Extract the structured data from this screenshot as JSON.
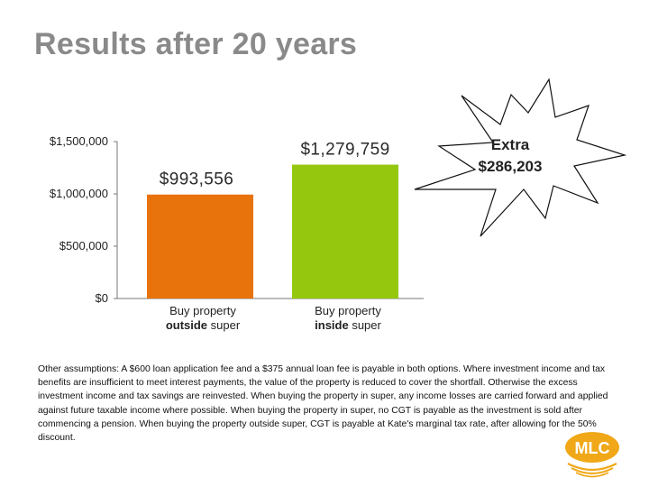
{
  "page": {
    "title": "Results after 20 years"
  },
  "chart_data": {
    "type": "bar",
    "title": "Results after 20 years",
    "ylim": [
      0,
      1500000
    ],
    "yticks": [
      {
        "value": 0,
        "label": "$0"
      },
      {
        "value": 500000,
        "label": "$500,000"
      },
      {
        "value": 1000000,
        "label": "$1,000,000"
      },
      {
        "value": 1500000,
        "label": "$1,500,000"
      }
    ],
    "categories": [
      {
        "line1": "Buy property",
        "bold": "outside",
        "rest": " super"
      },
      {
        "line1": "Buy property",
        "bold": "inside",
        "rest": " super"
      }
    ],
    "values": [
      993556,
      1279759
    ],
    "data_labels": [
      "$993,556",
      "$1,279,759"
    ],
    "colors": [
      "#e8720c",
      "#94c70e"
    ],
    "annotation": {
      "line1": "Extra",
      "line2": "$286,203"
    }
  },
  "footnote": "Other assumptions: A $600 loan application fee and a $375 annual loan fee is payable in both options. Where investment income and tax benefits are insufficient to meet interest payments, the value of the property is reduced to cover the shortfall. Otherwise the excess investment income and tax savings are reinvested. When buying the property in super, any income losses are carried forward and applied against future taxable income where possible. When buying the property in super, no CGT is payable as the investment is sold after commencing a pension. When buying the property outside super, CGT is payable at Kate's marginal tax rate, after allowing for the 50% discount.",
  "logo": {
    "text": "MLC",
    "color": "#f0a818"
  }
}
